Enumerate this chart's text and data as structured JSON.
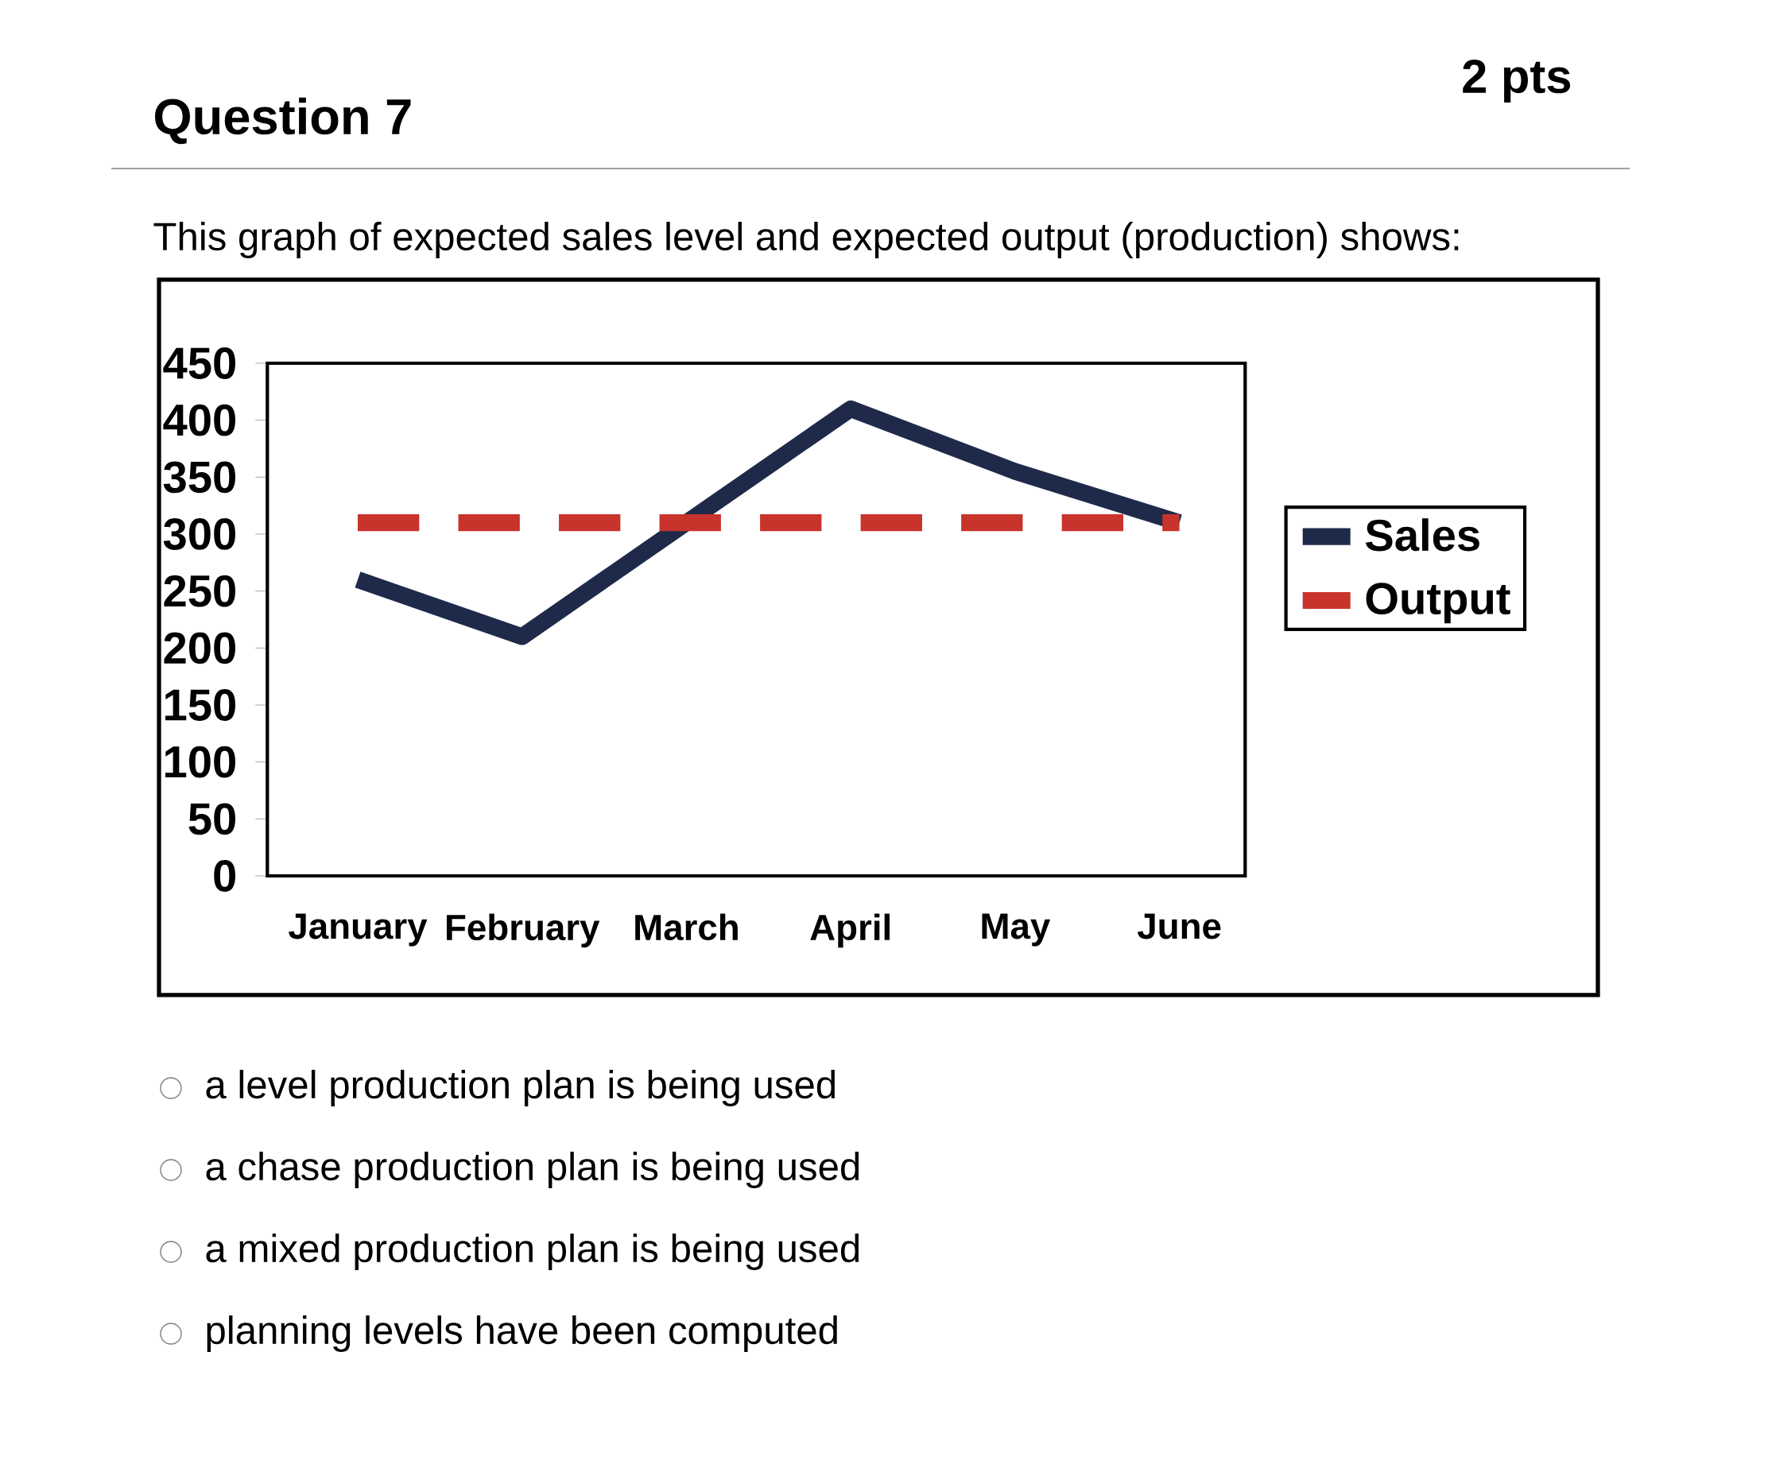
{
  "chart_data": {
    "type": "line",
    "title": "Question 7",
    "subtitle": "This graph of expected sales level and expected output (production) shows:",
    "categories": [
      "January",
      "February",
      "March",
      "April",
      "May",
      "June"
    ],
    "series": [
      {
        "name": "Sales",
        "color": "#1f2a4a",
        "values": [
          260,
          210,
          310,
          410,
          355,
          310
        ],
        "line_style": "solid"
      },
      {
        "name": "Output",
        "color": "#c8332b",
        "values": [
          310,
          310,
          310,
          310,
          310,
          310
        ],
        "line_style": "dashed"
      }
    ],
    "ylim": [
      0,
      450
    ],
    "yticks": [
      0,
      50,
      100,
      150,
      200,
      250,
      300,
      350,
      400,
      450
    ],
    "grid": false,
    "legend": "right",
    "marker": "none",
    "annotations": [
      "2 pts",
      "a level production plan is being used",
      "a chase production plan is being used",
      "a mixed production plan is being used",
      "planning levels have been computed"
    ]
  }
}
